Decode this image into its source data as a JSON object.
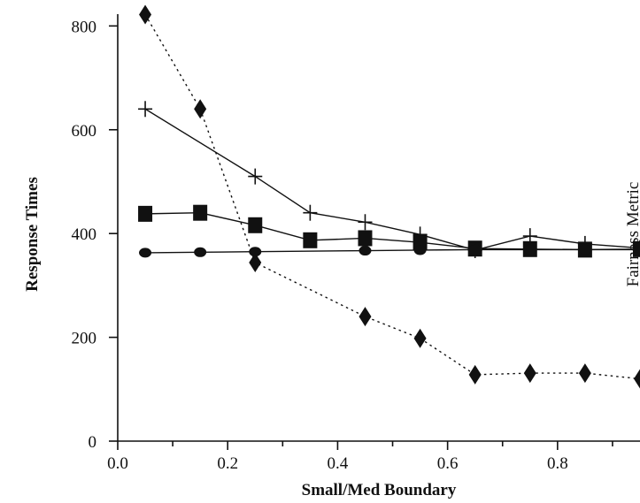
{
  "chart_data": {
    "type": "line",
    "xlabel": "Small/Med Boundary",
    "ylabel": "Response Times",
    "right_label": "Fairness Metric",
    "xlim": [
      0,
      0.95
    ],
    "ylim": [
      0,
      850
    ],
    "x_ticks": [
      0.0,
      0.2,
      0.4,
      0.6,
      0.8
    ],
    "x_tick_labels": [
      "0.0",
      "0.2",
      "0.4",
      "0.6",
      "0.8"
    ],
    "y_ticks": [
      0,
      200,
      400,
      600,
      800
    ],
    "y_tick_labels": [
      "0",
      "200",
      "400",
      "600",
      "800"
    ],
    "grid": false,
    "series": [
      {
        "marker": "plus",
        "line_style": "solid",
        "color": "#111111",
        "points": [
          [
            0.05,
            640
          ],
          [
            0.25,
            510
          ],
          [
            0.35,
            440
          ],
          [
            0.45,
            422
          ],
          [
            0.55,
            398
          ],
          [
            0.65,
            368
          ],
          [
            0.75,
            395
          ],
          [
            0.85,
            380
          ],
          [
            0.95,
            372
          ]
        ]
      },
      {
        "marker": "square",
        "line_style": "solid",
        "color": "#111111",
        "points": [
          [
            0.05,
            438
          ],
          [
            0.15,
            440
          ],
          [
            0.25,
            416
          ],
          [
            0.35,
            387
          ],
          [
            0.45,
            391
          ],
          [
            0.55,
            383
          ],
          [
            0.65,
            371
          ],
          [
            0.75,
            370
          ],
          [
            0.85,
            369
          ],
          [
            0.95,
            370
          ]
        ]
      },
      {
        "marker": "circle",
        "line_style": "solid",
        "color": "#111111",
        "points": [
          [
            0.05,
            363
          ],
          [
            0.15,
            364
          ],
          [
            0.25,
            365
          ],
          [
            0.45,
            367
          ],
          [
            0.55,
            368
          ],
          [
            0.65,
            369
          ],
          [
            0.75,
            369
          ],
          [
            0.85,
            369
          ],
          [
            0.95,
            369
          ]
        ]
      },
      {
        "marker": "diamond",
        "line_style": "dotted",
        "color": "#111111",
        "points": [
          [
            0.05,
            822
          ],
          [
            0.15,
            640
          ],
          [
            0.25,
            344
          ],
          [
            0.45,
            240
          ],
          [
            0.55,
            198
          ],
          [
            0.65,
            128
          ],
          [
            0.75,
            131
          ],
          [
            0.85,
            131
          ],
          [
            0.95,
            120
          ]
        ]
      }
    ]
  }
}
